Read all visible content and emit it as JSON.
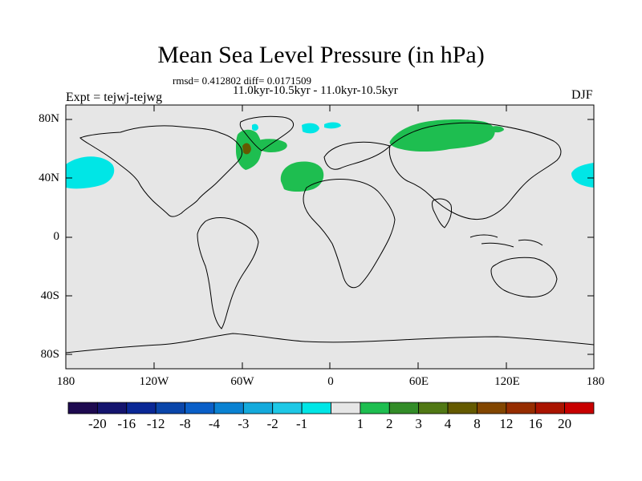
{
  "title": "Mean Sea Level Pressure (in hPa)",
  "stats": "rmsd= 0.412802 diff= 0.0171509",
  "period": "11.0kyr-10.5kyr - 11.0kyr-10.5kyr",
  "experiment": "Expt = tejwj-tejwg",
  "season": "DJF",
  "map": {
    "background_color": "#e6e6e6",
    "lat_labels": [
      "80N",
      "40N",
      "0",
      "40S",
      "80S"
    ],
    "lon_labels": [
      "180",
      "120W",
      "60W",
      "0",
      "60E",
      "120E",
      "180"
    ]
  },
  "colorbar": {
    "colors": [
      "#1e0a50",
      "#14146e",
      "#0a2896",
      "#0a46aa",
      "#0a5fc8",
      "#0a82d2",
      "#14aadc",
      "#1ec8e6",
      "#00e6e6",
      "#e6e6e6",
      "#1ebe50",
      "#328c28",
      "#507814",
      "#645a00",
      "#824600",
      "#962d00",
      "#aa1400",
      "#c80000"
    ],
    "labels": [
      "-20",
      "-16",
      "-12",
      "-8",
      "-4",
      "-3",
      "-2",
      "-1",
      "1",
      "2",
      "3",
      "4",
      "8",
      "12",
      "16",
      "20"
    ]
  }
}
